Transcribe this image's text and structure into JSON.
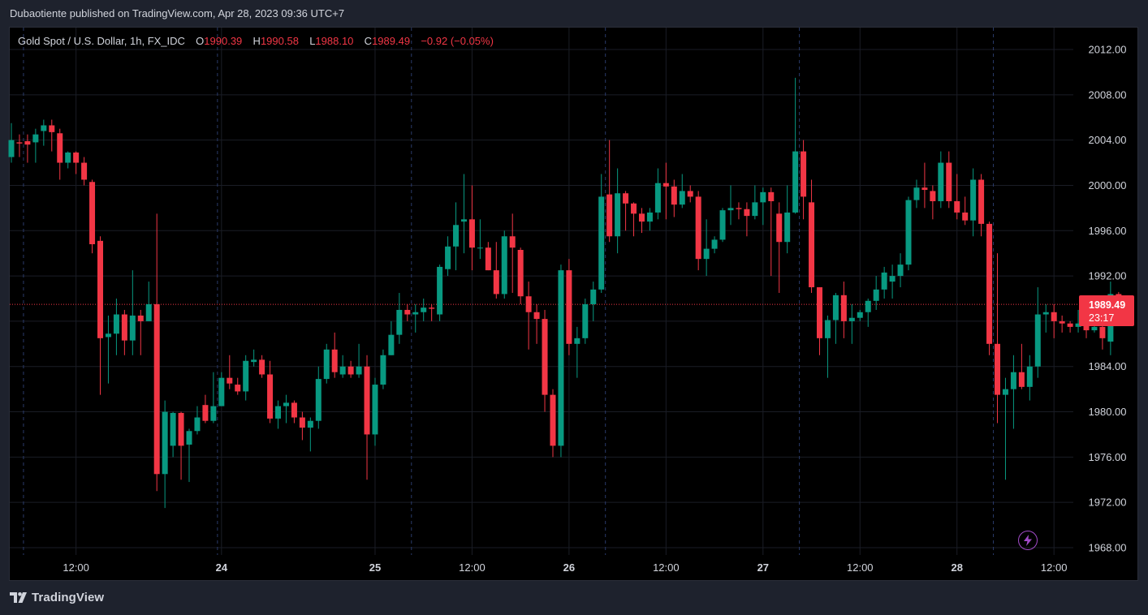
{
  "header": {
    "published": "Dubaotiente published on TradingView.com, Apr 28, 2023 09:36 UTC+7"
  },
  "legend": {
    "symbol": "Gold Spot / U.S. Dollar, 1h, FX_IDC",
    "open_label": "O",
    "open": "1990.39",
    "high_label": "H",
    "high": "1990.58",
    "low_label": "L",
    "low": "1988.10",
    "close_label": "C",
    "close": "1989.49",
    "change": "−0.92 (−0.05%)"
  },
  "price_tag": {
    "price": "1989.49",
    "countdown": "23:17"
  },
  "footer": {
    "brand": "TradingView"
  },
  "icons": {
    "logo": "tradingview-logo-icon",
    "bolt": "lightning-icon"
  },
  "colors": {
    "up": "#089981",
    "down": "#f23645",
    "background": "#000000",
    "grid": "#1a1d26"
  },
  "chart_data": {
    "type": "candlestick",
    "y_axis": {
      "min": 1968,
      "max": 2012,
      "step": 4,
      "tick_labels": [
        "2012.00",
        "2008.00",
        "2004.00",
        "2000.00",
        "1996.00",
        "1992.00",
        "1988.00",
        "1984.00",
        "1980.00",
        "1976.00",
        "1972.00",
        "1968.00"
      ]
    },
    "x_axis": {
      "tick_labels": [
        {
          "label": "12:00",
          "at": 8
        },
        {
          "label": "24",
          "at": 26,
          "bold": true
        },
        {
          "label": "25",
          "at": 45,
          "bold": true
        },
        {
          "label": "12:00",
          "at": 57
        },
        {
          "label": "26",
          "at": 69,
          "bold": true
        },
        {
          "label": "12:00",
          "at": 81
        },
        {
          "label": "27",
          "at": 93,
          "bold": true
        },
        {
          "label": "12:00",
          "at": 105
        },
        {
          "label": "28",
          "at": 117,
          "bold": true
        },
        {
          "label": "12:00",
          "at": 129
        }
      ],
      "session_separators": [
        1.5,
        25.5,
        49.5,
        73.5,
        97.5,
        121.5
      ]
    },
    "current_price": 1989.49,
    "candles": [
      [
        2002.5,
        2004.0,
        2002.0,
        2005.5
      ],
      [
        2003.8,
        2003.7,
        2002.5,
        2004.5
      ],
      [
        2003.9,
        2003.6,
        2002.0,
        2004.5
      ],
      [
        2003.8,
        2004.5,
        2002.0,
        2005.0
      ],
      [
        2004.8,
        2005.3,
        2003.5,
        2005.8
      ],
      [
        2005.3,
        2004.7,
        2003.0,
        2005.8
      ],
      [
        2004.6,
        2002.0,
        2000.5,
        2005.0
      ],
      [
        2002.0,
        2002.9,
        2001.5,
        2003.0
      ],
      [
        2002.9,
        2002.0,
        2001.0,
        2003.0
      ],
      [
        2002.0,
        2000.5,
        2000.0,
        2002.5
      ],
      [
        2000.3,
        1994.8,
        1994.0,
        2000.5
      ],
      [
        1995.1,
        1986.5,
        1981.5,
        1995.5
      ],
      [
        1986.6,
        1986.9,
        1982.5,
        1988.5
      ],
      [
        1986.9,
        1988.6,
        1985.0,
        1990.0
      ],
      [
        1988.6,
        1986.3,
        1985.0,
        1989.0
      ],
      [
        1986.3,
        1988.5,
        1985.0,
        1992.5
      ],
      [
        1988.5,
        1988.0,
        1985.0,
        1989.0
      ],
      [
        1988.0,
        1989.5,
        1988.0,
        1991.5
      ],
      [
        1989.5,
        1974.5,
        1973.0,
        1997.5
      ],
      [
        1974.5,
        1980.0,
        1971.5,
        1981.0
      ],
      [
        1977.0,
        1979.9,
        1976.0,
        1980.0
      ],
      [
        1979.9,
        1977.0,
        1974.0,
        1980.0
      ],
      [
        1977.1,
        1978.3,
        1973.8,
        1978.5
      ],
      [
        1978.3,
        1979.5,
        1978.0,
        1980.5
      ],
      [
        1980.6,
        1979.2,
        1979.0,
        1981.5
      ],
      [
        1979.2,
        1980.5,
        1979.0,
        1983.5
      ],
      [
        1980.5,
        1983.0,
        1980.5,
        1983.5
      ],
      [
        1983.0,
        1982.5,
        1982.0,
        1985.0
      ],
      [
        1982.4,
        1981.8,
        1981.5,
        1983.0
      ],
      [
        1981.8,
        1984.5,
        1981.0,
        1985.0
      ],
      [
        1984.4,
        1984.6,
        1984.0,
        1985.5
      ],
      [
        1984.6,
        1983.3,
        1983.0,
        1985.0
      ],
      [
        1983.3,
        1979.4,
        1979.0,
        1984.5
      ],
      [
        1979.4,
        1980.5,
        1978.5,
        1981.0
      ],
      [
        1980.5,
        1980.8,
        1979.0,
        1981.5
      ],
      [
        1980.8,
        1979.5,
        1979.0,
        1981.0
      ],
      [
        1979.5,
        1978.6,
        1977.5,
        1980.0
      ],
      [
        1978.6,
        1979.2,
        1976.5,
        1979.5
      ],
      [
        1979.2,
        1982.9,
        1978.5,
        1984.0
      ],
      [
        1982.9,
        1985.5,
        1982.5,
        1986.0
      ],
      [
        1985.5,
        1983.5,
        1983.0,
        1987.0
      ],
      [
        1983.3,
        1984.0,
        1983.0,
        1985.0
      ],
      [
        1984.0,
        1983.3,
        1983.0,
        1984.5
      ],
      [
        1983.3,
        1984.0,
        1983.0,
        1986.0
      ],
      [
        1984.0,
        1978.0,
        1974.0,
        1985.0
      ],
      [
        1978.0,
        1982.4,
        1977.0,
        1983.0
      ],
      [
        1982.4,
        1985.0,
        1982.0,
        1985.5
      ],
      [
        1985.0,
        1986.8,
        1985.0,
        1988.0
      ],
      [
        1986.8,
        1989.0,
        1986.0,
        1990.5
      ],
      [
        1989.0,
        1988.6,
        1988.0,
        1989.5
      ],
      [
        1988.6,
        1988.8,
        1987.0,
        1989.5
      ],
      [
        1988.8,
        1989.2,
        1988.0,
        1990.0
      ],
      [
        1989.2,
        1989.1,
        1988.0,
        1989.5
      ],
      [
        1988.6,
        1992.8,
        1988.0,
        1993.0
      ],
      [
        1992.6,
        1994.6,
        1992.0,
        1995.5
      ],
      [
        1994.6,
        1996.5,
        1992.5,
        1998.5
      ],
      [
        1996.8,
        1997.0,
        1994.0,
        2001.0
      ],
      [
        1997.0,
        1994.5,
        1992.5,
        2000.0
      ],
      [
        1994.5,
        1994.5,
        1993.5,
        1997.0
      ],
      [
        1994.5,
        1992.5,
        1992.5,
        1995.0
      ],
      [
        1992.5,
        1990.4,
        1990.0,
        1995.0
      ],
      [
        1990.4,
        1995.5,
        1990.0,
        1996.0
      ],
      [
        1995.5,
        1994.5,
        1990.5,
        1997.5
      ],
      [
        1994.3,
        1990.2,
        1989.5,
        1994.5
      ],
      [
        1990.2,
        1988.8,
        1985.5,
        1991.5
      ],
      [
        1988.8,
        1988.2,
        1986.0,
        1989.5
      ],
      [
        1988.2,
        1981.5,
        1980.0,
        1989.0
      ],
      [
        1981.5,
        1977.0,
        1976.0,
        1982.0
      ],
      [
        1977.0,
        1992.5,
        1976.0,
        1993.0
      ],
      [
        1992.5,
        1986.0,
        1985.0,
        1993.5
      ],
      [
        1986.0,
        1986.5,
        1983.0,
        1987.5
      ],
      [
        1986.5,
        1989.5,
        1986.0,
        1990.0
      ],
      [
        1989.5,
        1990.8,
        1988.0,
        1991.5
      ],
      [
        1990.8,
        1999.0,
        1990.5,
        2001.0
      ],
      [
        1999.2,
        1995.5,
        1995.0,
        2004.0
      ],
      [
        1995.5,
        1999.3,
        1994.0,
        2001.5
      ],
      [
        1999.3,
        1998.4,
        1996.0,
        1999.5
      ],
      [
        1998.4,
        1997.5,
        1995.5,
        1998.5
      ],
      [
        1997.5,
        1996.8,
        1995.8,
        1998.0
      ],
      [
        1996.8,
        1997.6,
        1996.0,
        1998.0
      ],
      [
        1997.6,
        2000.2,
        1997.0,
        2001.5
      ],
      [
        2000.2,
        1999.9,
        1997.0,
        2002.0
      ],
      [
        1999.9,
        1998.3,
        1997.2,
        2000.5
      ],
      [
        1998.3,
        1999.5,
        1998.0,
        2001.0
      ],
      [
        1999.5,
        1999.0,
        1998.5,
        2000.0
      ],
      [
        1999.0,
        1993.5,
        1992.5,
        1999.5
      ],
      [
        1993.5,
        1994.4,
        1992.0,
        1997.0
      ],
      [
        1994.4,
        1995.2,
        1994.0,
        1995.5
      ],
      [
        1995.2,
        1997.8,
        1995.0,
        1998.0
      ],
      [
        1997.8,
        1998.0,
        1996.5,
        2000.0
      ],
      [
        1998.0,
        1997.9,
        1997.0,
        1998.5
      ],
      [
        1997.9,
        1997.3,
        1995.5,
        1998.5
      ],
      [
        1997.3,
        1998.5,
        1997.0,
        2000.0
      ],
      [
        1998.5,
        1999.4,
        1996.5,
        1999.8
      ],
      [
        1999.4,
        1998.6,
        1992.0,
        1999.8
      ],
      [
        1997.5,
        1995.0,
        1990.5,
        1998.5
      ],
      [
        1995.0,
        1997.6,
        1994.0,
        2000.0
      ],
      [
        1997.6,
        2003.0,
        1997.5,
        2009.5
      ],
      [
        2003.0,
        1999.0,
        1997.0,
        2004.0
      ],
      [
        1998.5,
        1991.0,
        1990.5,
        2000.5
      ],
      [
        1991.0,
        1986.5,
        1985.0,
        1991.0
      ],
      [
        1986.5,
        1988.1,
        1983.0,
        1988.5
      ],
      [
        1988.1,
        1990.3,
        1986.0,
        1990.5
      ],
      [
        1990.3,
        1988.0,
        1986.5,
        1991.5
      ],
      [
        1988.0,
        1988.3,
        1986.0,
        1989.5
      ],
      [
        1988.3,
        1988.8,
        1988.0,
        1989.0
      ],
      [
        1988.8,
        1989.8,
        1987.5,
        1990.0
      ],
      [
        1989.8,
        1990.8,
        1989.0,
        1992.0
      ],
      [
        1990.8,
        1992.3,
        1990.0,
        1992.8
      ],
      [
        1991.5,
        1992.0,
        1990.0,
        1993.0
      ],
      [
        1992.0,
        1993.0,
        1991.0,
        1994.0
      ],
      [
        1993.0,
        1998.7,
        1992.5,
        1999.0
      ],
      [
        1998.7,
        1999.8,
        1998.0,
        2000.5
      ],
      [
        1999.8,
        1999.6,
        1998.0,
        2002.0
      ],
      [
        1999.5,
        1998.6,
        1997.0,
        2000.0
      ],
      [
        1998.6,
        2002.0,
        1998.0,
        2003.0
      ],
      [
        2002.0,
        1998.6,
        1998.0,
        2003.0
      ],
      [
        1998.6,
        1997.6,
        1997.0,
        2001.0
      ],
      [
        1997.6,
        1996.9,
        1996.5,
        1999.0
      ],
      [
        1996.9,
        2000.5,
        1995.5,
        2001.5
      ],
      [
        2000.5,
        1996.6,
        1995.5,
        2001.0
      ],
      [
        1996.6,
        1986.0,
        1985.0,
        1996.8
      ],
      [
        1986.0,
        1981.5,
        1979.0,
        1994.0
      ],
      [
        1981.5,
        1982.0,
        1974.0,
        1983.0
      ],
      [
        1982.0,
        1983.5,
        1978.5,
        1985.0
      ],
      [
        1983.5,
        1982.2,
        1982.0,
        1986.0
      ],
      [
        1982.2,
        1984.0,
        1981.0,
        1985.0
      ],
      [
        1984.0,
        1988.6,
        1983.0,
        1991.0
      ],
      [
        1988.6,
        1988.8,
        1987.0,
        1989.5
      ],
      [
        1988.8,
        1988.0,
        1986.5,
        1989.5
      ],
      [
        1988.0,
        1987.8,
        1987.0,
        1988.5
      ],
      [
        1987.8,
        1987.5,
        1987.0,
        1988.0
      ],
      [
        1987.5,
        1987.8,
        1987.0,
        1989.0
      ],
      [
        1987.8,
        1987.2,
        1986.5,
        1988.0
      ],
      [
        1987.2,
        1987.5,
        1987.0,
        1987.8
      ],
      [
        1987.5,
        1986.5,
        1985.5,
        1987.8
      ],
      [
        1986.2,
        1990.4,
        1985.0,
        1991.5
      ],
      [
        1990.4,
        1989.49,
        1988.1,
        1990.58
      ]
    ]
  }
}
